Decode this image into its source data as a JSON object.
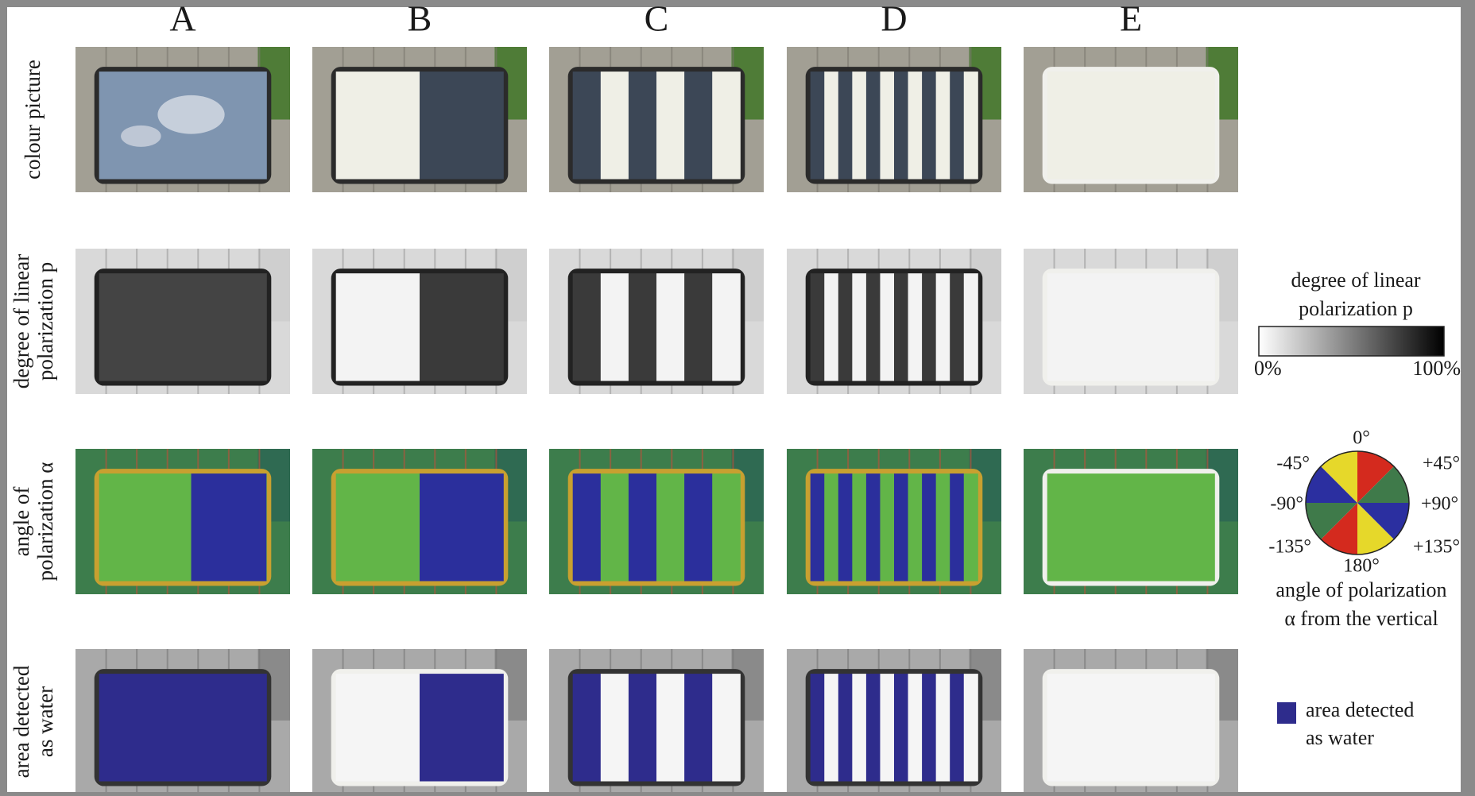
{
  "columns": [
    "A",
    "B",
    "C",
    "D",
    "E"
  ],
  "rows": [
    [
      "colour picture"
    ],
    [
      "degree of linear",
      "polarization p"
    ],
    [
      "angle of",
      "polarization α"
    ],
    [
      "area detected",
      "as water"
    ]
  ],
  "legend_degree": {
    "title": [
      "degree of linear",
      "polarization p"
    ],
    "min": "0%",
    "max": "100%"
  },
  "legend_angle": {
    "labels": [
      "0°",
      "+45°",
      "+90°",
      "+135°",
      "180°",
      "-135°",
      "-90°",
      "-45°"
    ],
    "caption": [
      "angle of polarization",
      "α from the vertical"
    ]
  },
  "legend_water": {
    "label": [
      "area detected",
      "as water"
    ]
  }
}
